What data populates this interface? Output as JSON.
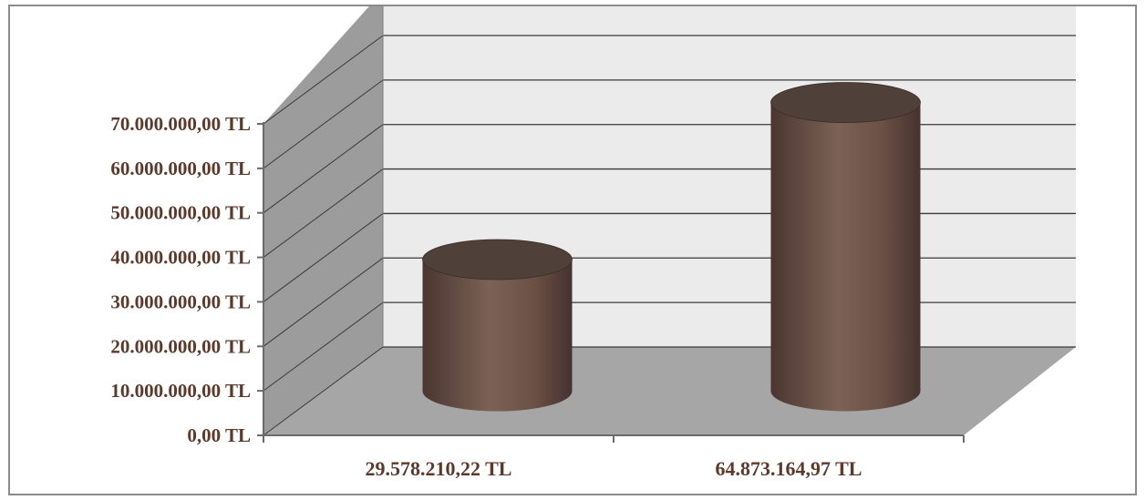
{
  "chart_data": {
    "type": "bar",
    "shape": "cylinder-3d",
    "categories": [
      "29.578.210,22 TL",
      "64.873.164,97 TL"
    ],
    "values": [
      29578210.22,
      64873164.97
    ],
    "y_ticks": [
      "0,00 TL",
      "10.000.000,00 TL",
      "20.000.000,00 TL",
      "30.000.000,00 TL",
      "40.000.000,00 TL",
      "50.000.000,00 TL",
      "60.000.000,00 TL",
      "70.000.000,00 TL"
    ],
    "ylim": [
      0,
      70000000
    ],
    "grid": true,
    "title": "",
    "xlabel": "",
    "ylabel": "",
    "colors": {
      "bar": "#6e5448",
      "bar_dark": "#4a3630",
      "bar_top": "#50403a",
      "back_wall": "#ebebeb",
      "side_wall": "#9c9c9c",
      "floor": "#a6a6a6",
      "gridline": "#3a3a3a",
      "label": "#5b3a2c"
    }
  }
}
